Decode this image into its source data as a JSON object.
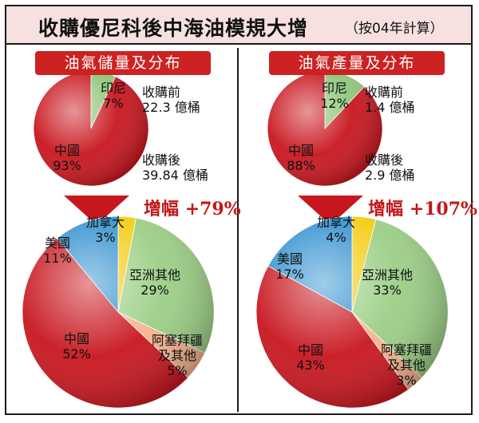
{
  "title": "收購優尼科後中海油模規大增",
  "subtitle": "（按04年計算）",
  "colors": {
    "china": "#c8161e",
    "indonesia": "#8fc77a",
    "asia_other": "#9ccf86",
    "canada": "#f4cd16",
    "usa": "#2f8fcf",
    "azerbaijan": "#f5b38d",
    "header": "#cc2222",
    "growth": "#c41818"
  },
  "panels": [
    {
      "heading": "油氣儲量及分布",
      "before_label": "收購前",
      "before_value": "22.3 億桶",
      "after_label": "收購後",
      "after_value": "39.84 億桶",
      "growth_label": "增幅",
      "growth_value": "+79%",
      "small_pie": [
        {
          "name": "印尼",
          "pct": "7%",
          "value": 7,
          "color_key": "indonesia"
        },
        {
          "name": "中國",
          "pct": "93%",
          "value": 93,
          "color_key": "china"
        }
      ],
      "big_pie": [
        {
          "name": "加拿大",
          "pct": "3%",
          "value": 3,
          "color_key": "canada"
        },
        {
          "name": "亞洲其他",
          "pct": "29%",
          "value": 29,
          "color_key": "asia_other"
        },
        {
          "name": "阿塞拜疆及其他",
          "pct": "5%",
          "value": 5,
          "color_key": "azerbaijan"
        },
        {
          "name": "中國",
          "pct": "52%",
          "value": 52,
          "color_key": "china"
        },
        {
          "name": "美國",
          "pct": "11%",
          "value": 11,
          "color_key": "usa"
        }
      ]
    },
    {
      "heading": "油氣產量及分布",
      "before_label": "收購前",
      "before_value": "1.4 億桶",
      "after_label": "收購後",
      "after_value": "2.9 億桶",
      "growth_label": "增幅",
      "growth_value": "+107%",
      "small_pie": [
        {
          "name": "印尼",
          "pct": "12%",
          "value": 12,
          "color_key": "indonesia"
        },
        {
          "name": "中國",
          "pct": "88%",
          "value": 88,
          "color_key": "china"
        }
      ],
      "big_pie": [
        {
          "name": "加拿大",
          "pct": "4%",
          "value": 4,
          "color_key": "canada"
        },
        {
          "name": "亞洲其他",
          "pct": "33%",
          "value": 33,
          "color_key": "asia_other"
        },
        {
          "name": "阿塞拜疆及其他",
          "pct": "3%",
          "value": 3,
          "color_key": "azerbaijan"
        },
        {
          "name": "中國",
          "pct": "43%",
          "value": 43,
          "color_key": "china"
        },
        {
          "name": "美國",
          "pct": "17%",
          "value": 17,
          "color_key": "usa"
        }
      ]
    }
  ],
  "chart_data": [
    {
      "type": "pie",
      "title": "油氣儲量及分布 收購前",
      "categories": [
        "印尼",
        "中國"
      ],
      "values": [
        7,
        93
      ]
    },
    {
      "type": "pie",
      "title": "油氣儲量及分布 收購後",
      "categories": [
        "加拿大",
        "亞洲其他",
        "阿塞拜疆及其他",
        "中國",
        "美國"
      ],
      "values": [
        3,
        29,
        5,
        52,
        11
      ]
    },
    {
      "type": "pie",
      "title": "油氣產量及分布 收購前",
      "categories": [
        "印尼",
        "中國"
      ],
      "values": [
        12,
        88
      ]
    },
    {
      "type": "pie",
      "title": "油氣產量及分布 收購後",
      "categories": [
        "加拿大",
        "亞洲其他",
        "阿塞拜疆及其他",
        "中國",
        "美國"
      ],
      "values": [
        4,
        33,
        3,
        43,
        17
      ]
    }
  ]
}
